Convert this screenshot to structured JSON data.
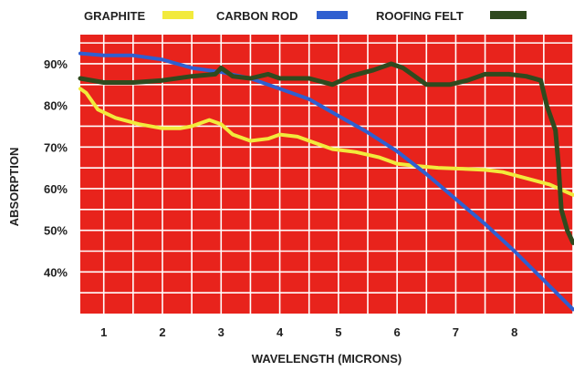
{
  "chart_data": {
    "type": "line",
    "title": "",
    "xlabel": "WAVELENGTH (MICRONS)",
    "ylabel": "ABSORPTION",
    "x_ticks": [
      "1",
      "2",
      "3",
      "4",
      "5",
      "6",
      "7",
      "8"
    ],
    "y_ticks": [
      "40%",
      "50%",
      "60%",
      "70%",
      "80%",
      "90%"
    ],
    "xlim": [
      0.6,
      9.0
    ],
    "ylim": [
      30,
      97
    ],
    "grid": true,
    "legend_position": "top",
    "background_color": "#e8231c",
    "grid_color": "#ffffff",
    "series": [
      {
        "name": "GRAPHITE",
        "color": "#f2ea3c",
        "points": [
          [
            0.6,
            84
          ],
          [
            0.7,
            83
          ],
          [
            0.9,
            79
          ],
          [
            1.2,
            77
          ],
          [
            1.6,
            75.5
          ],
          [
            2.0,
            74.5
          ],
          [
            2.3,
            74.5
          ],
          [
            2.5,
            75
          ],
          [
            2.8,
            76.5
          ],
          [
            3.0,
            75.5
          ],
          [
            3.2,
            73
          ],
          [
            3.5,
            71.5
          ],
          [
            3.8,
            72
          ],
          [
            4.0,
            73
          ],
          [
            4.3,
            72.5
          ],
          [
            4.6,
            71
          ],
          [
            4.9,
            69.5
          ],
          [
            5.3,
            68.8
          ],
          [
            5.7,
            67.5
          ],
          [
            6.0,
            66
          ],
          [
            6.3,
            65.5
          ],
          [
            6.7,
            65
          ],
          [
            7.1,
            64.8
          ],
          [
            7.5,
            64.5
          ],
          [
            7.8,
            64
          ],
          [
            8.2,
            62.5
          ],
          [
            8.6,
            61
          ],
          [
            9.0,
            58.5
          ]
        ]
      },
      {
        "name": "CARBON ROD",
        "color": "#2f5fd0",
        "points": [
          [
            0.6,
            92.5
          ],
          [
            1.0,
            92
          ],
          [
            1.5,
            92
          ],
          [
            2.0,
            91
          ],
          [
            2.5,
            89
          ],
          [
            3.0,
            88
          ],
          [
            3.5,
            86.5
          ],
          [
            4.0,
            84
          ],
          [
            4.5,
            81.5
          ],
          [
            5.0,
            77.5
          ],
          [
            5.5,
            73.5
          ],
          [
            6.0,
            69
          ],
          [
            6.5,
            63.5
          ],
          [
            7.0,
            57.5
          ],
          [
            7.5,
            51.5
          ],
          [
            8.0,
            45
          ],
          [
            8.5,
            38
          ],
          [
            9.0,
            31
          ]
        ]
      },
      {
        "name": "ROOFING FELT",
        "color": "#2f4a1e",
        "points": [
          [
            0.6,
            86.5
          ],
          [
            1.0,
            85.5
          ],
          [
            1.5,
            85.5
          ],
          [
            2.0,
            86
          ],
          [
            2.5,
            87
          ],
          [
            2.9,
            87.5
          ],
          [
            3.0,
            89
          ],
          [
            3.2,
            87
          ],
          [
            3.5,
            86.5
          ],
          [
            3.8,
            87.5
          ],
          [
            4.0,
            86.5
          ],
          [
            4.5,
            86.5
          ],
          [
            4.9,
            85
          ],
          [
            5.2,
            87
          ],
          [
            5.6,
            88.5
          ],
          [
            5.9,
            90
          ],
          [
            6.1,
            89
          ],
          [
            6.5,
            85
          ],
          [
            6.9,
            85
          ],
          [
            7.2,
            86
          ],
          [
            7.5,
            87.5
          ],
          [
            7.9,
            87.5
          ],
          [
            8.2,
            87
          ],
          [
            8.45,
            86
          ],
          [
            8.55,
            80
          ],
          [
            8.7,
            74
          ],
          [
            8.75,
            66
          ],
          [
            8.8,
            55
          ],
          [
            8.9,
            50
          ],
          [
            9.0,
            47
          ]
        ]
      }
    ]
  }
}
